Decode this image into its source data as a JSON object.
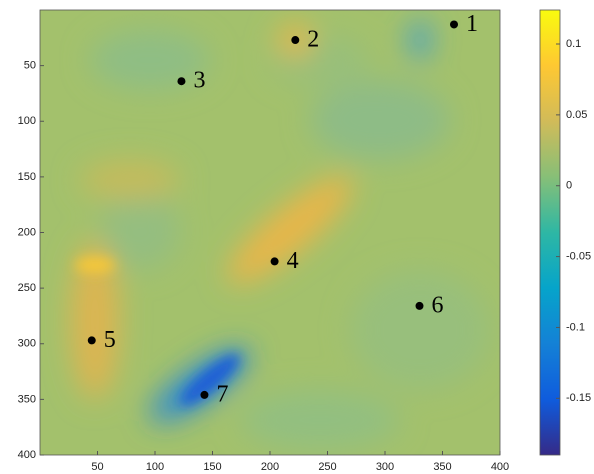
{
  "chart_data": {
    "type": "scatter",
    "x": [
      360,
      222,
      123,
      204,
      45,
      330,
      143
    ],
    "y": [
      13,
      27,
      64,
      226,
      297,
      266,
      346
    ],
    "point_labels": [
      "1",
      "2",
      "3",
      "4",
      "5",
      "6",
      "7"
    ],
    "color": "#000000",
    "xlim": [
      0,
      400
    ],
    "xticks": [
      50,
      100,
      150,
      200,
      250,
      300,
      350,
      400
    ],
    "ylim": [
      0,
      400
    ],
    "yticks": [
      50,
      100,
      150,
      200,
      250,
      300,
      350,
      400
    ],
    "y_reversed": true,
    "colorbar": {
      "clim": [
        -0.19,
        0.124
      ],
      "ticks": [
        0.1,
        0.05,
        0,
        -0.05,
        -0.1,
        -0.15
      ],
      "colors": [
        "#352a87",
        "#0f5cdd",
        "#1481d6",
        "#06a4ca",
        "#2eb7a4",
        "#87bf77",
        "#d1bb59",
        "#fec832",
        "#f9fb0e"
      ]
    }
  }
}
